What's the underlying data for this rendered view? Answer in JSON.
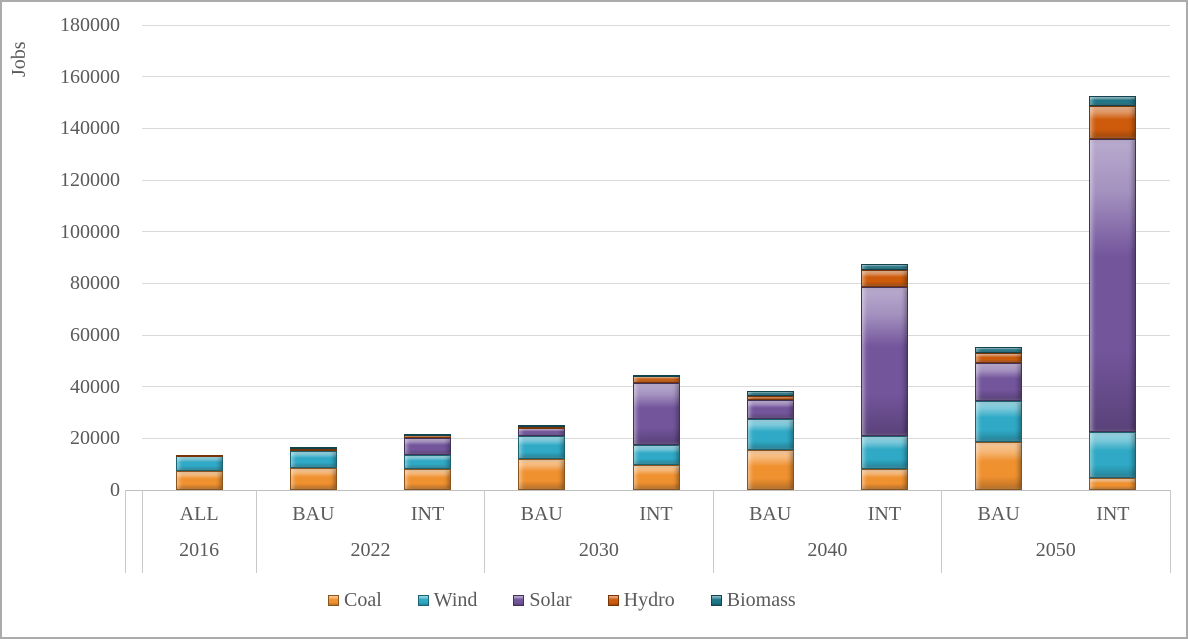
{
  "chart_data": {
    "type": "stacked-bar",
    "title": "",
    "ylabel": "Jobs",
    "xlabel": "",
    "ylim": [
      0,
      180000
    ],
    "ystep": 20000,
    "grid": true,
    "legend_position": "bottom",
    "scenarios": [
      "ALL",
      "BAU",
      "INT",
      "BAU",
      "INT",
      "BAU",
      "INT",
      "BAU",
      "INT"
    ],
    "groups": [
      {
        "label": "2016",
        "count": 1
      },
      {
        "label": "2022",
        "count": 2
      },
      {
        "label": "2030",
        "count": 2
      },
      {
        "label": "2040",
        "count": 2
      },
      {
        "label": "2050",
        "count": 2
      }
    ],
    "series": [
      {
        "name": "Coal",
        "color": "#F09130",
        "values": [
          7500,
          8500,
          8000,
          12000,
          9500,
          15500,
          8000,
          18500,
          4500
        ]
      },
      {
        "name": "Wind",
        "color": "#2FA9C5",
        "values": [
          5500,
          6500,
          5500,
          9000,
          8000,
          12000,
          13000,
          16000,
          18000
        ]
      },
      {
        "name": "Solar",
        "color": "#73559C",
        "values": [
          0,
          700,
          6500,
          3000,
          24000,
          7500,
          57500,
          14500,
          113500
        ]
      },
      {
        "name": "Hydro",
        "color": "#CE5B0C",
        "values": [
          500,
          300,
          1200,
          500,
          2500,
          1500,
          6500,
          4000,
          12500
        ]
      },
      {
        "name": "Biomass",
        "color": "#1E7689",
        "values": [
          0,
          600,
          400,
          500,
          600,
          2000,
          2500,
          2500,
          4000
        ]
      }
    ]
  },
  "colors": {
    "gridline": "#D9D9D9",
    "axis_line": "#BFBFBF",
    "text": "#5A5A5A",
    "border": "#ABABAB"
  }
}
